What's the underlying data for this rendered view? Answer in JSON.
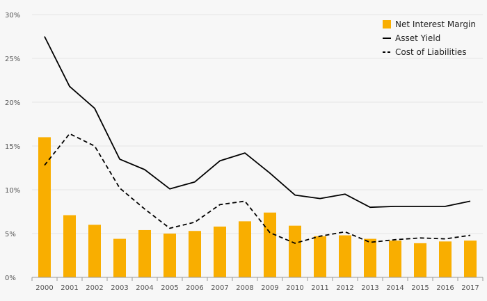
{
  "chart_data": {
    "type": "bar",
    "title": "",
    "xlabel": "",
    "ylabel": "",
    "ylim": [
      0,
      30
    ],
    "yticks": [
      0,
      5,
      10,
      15,
      20,
      25,
      30
    ],
    "ytick_labels": [
      "0%",
      "5%",
      "10%",
      "15%",
      "20%",
      "25%",
      "30%"
    ],
    "grid": true,
    "legend_position": "top-right",
    "categories": [
      "2000",
      "2001",
      "2002",
      "2003",
      "2004",
      "2005",
      "2006",
      "2007",
      "2008",
      "2009",
      "2010",
      "2011",
      "2012",
      "2013",
      "2014",
      "2015",
      "2016",
      "2017"
    ],
    "series": [
      {
        "name": "Net Interest Margin",
        "type": "bar",
        "color": "#f9ae00",
        "values": [
          16.0,
          7.1,
          6.0,
          4.4,
          5.4,
          5.0,
          5.3,
          5.8,
          6.4,
          7.4,
          5.9,
          4.7,
          4.8,
          4.4,
          4.2,
          3.9,
          4.1,
          4.2
        ]
      },
      {
        "name": "Asset Yield",
        "type": "line",
        "style": "solid",
        "color": "#000000",
        "values": [
          27.5,
          21.8,
          19.3,
          13.5,
          12.3,
          10.1,
          10.9,
          13.3,
          14.2,
          11.9,
          9.4,
          9.0,
          9.5,
          8.0,
          8.1,
          8.1,
          8.1,
          8.7
        ]
      },
      {
        "name": "Cost of Liabilities",
        "type": "line",
        "style": "dashed",
        "color": "#000000",
        "values": [
          12.8,
          16.4,
          15.0,
          10.2,
          7.8,
          5.6,
          6.3,
          8.3,
          8.7,
          5.1,
          3.9,
          4.7,
          5.2,
          4.0,
          4.3,
          4.5,
          4.4,
          4.8
        ]
      }
    ]
  }
}
